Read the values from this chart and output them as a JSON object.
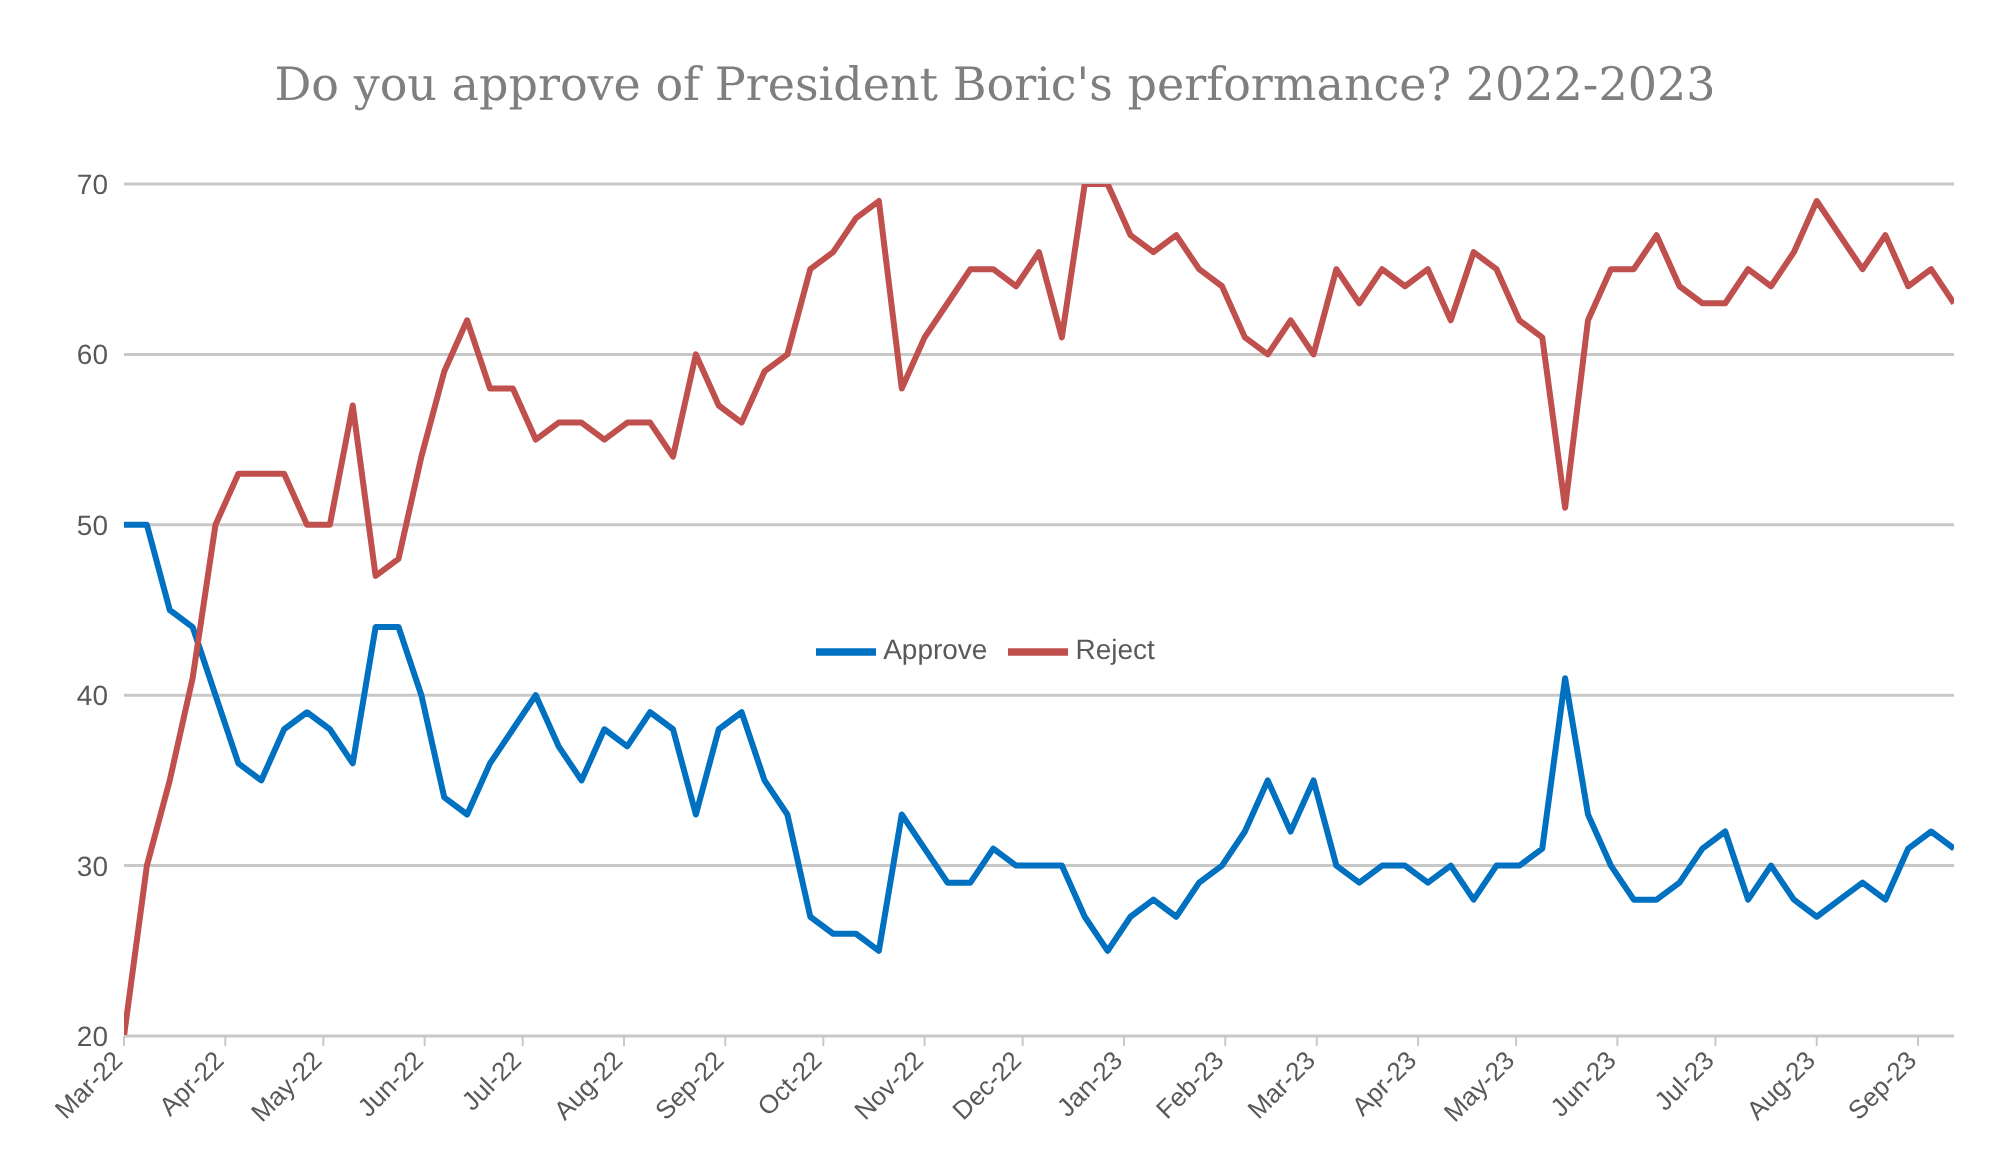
{
  "chart_data": {
    "type": "line",
    "title": "Do you approve of President Boric's performance? 2022-2023",
    "x": [
      "2022-03-01",
      "2022-03-08",
      "2022-03-15",
      "2022-03-22",
      "2022-03-29",
      "2022-04-05",
      "2022-04-12",
      "2022-04-19",
      "2022-04-26",
      "2022-05-03",
      "2022-05-10",
      "2022-05-17",
      "2022-05-24",
      "2022-05-31",
      "2022-06-07",
      "2022-06-14",
      "2022-06-21",
      "2022-06-28",
      "2022-07-05",
      "2022-07-12",
      "2022-07-19",
      "2022-07-26",
      "2022-08-02",
      "2022-08-09",
      "2022-08-16",
      "2022-08-23",
      "2022-08-30",
      "2022-09-06",
      "2022-09-13",
      "2022-09-20",
      "2022-09-27",
      "2022-10-04",
      "2022-10-11",
      "2022-10-18",
      "2022-10-25",
      "2022-11-01",
      "2022-11-08",
      "2022-11-15",
      "2022-11-22",
      "2022-11-29",
      "2022-12-06",
      "2022-12-13",
      "2022-12-20",
      "2022-12-27",
      "2023-01-03",
      "2023-01-10",
      "2023-01-17",
      "2023-01-24",
      "2023-01-31",
      "2023-02-07",
      "2023-02-14",
      "2023-02-21",
      "2023-02-28",
      "2023-03-07",
      "2023-03-14",
      "2023-03-21",
      "2023-03-28",
      "2023-04-04",
      "2023-04-11",
      "2023-04-18",
      "2023-04-25",
      "2023-05-02",
      "2023-05-09",
      "2023-05-16",
      "2023-05-23",
      "2023-05-30",
      "2023-06-06",
      "2023-06-13",
      "2023-06-20",
      "2023-06-27",
      "2023-07-04",
      "2023-07-11",
      "2023-07-18",
      "2023-07-25",
      "2023-08-01",
      "2023-08-08",
      "2023-08-15",
      "2023-08-22",
      "2023-08-29",
      "2023-09-05",
      "2023-09-12"
    ],
    "series": [
      {
        "name": "Approve",
        "color": "#0070c0",
        "values": [
          50,
          50,
          45,
          44,
          40,
          36,
          35,
          38,
          39,
          38,
          36,
          44,
          44,
          40,
          34,
          33,
          36,
          38,
          40,
          37,
          35,
          38,
          37,
          39,
          38,
          33,
          38,
          39,
          35,
          33,
          27,
          26,
          26,
          25,
          33,
          31,
          29,
          29,
          31,
          30,
          30,
          30,
          27,
          25,
          27,
          28,
          27,
          29,
          30,
          32,
          35,
          32,
          35,
          30,
          29,
          30,
          30,
          29,
          30,
          28,
          30,
          30,
          31,
          41,
          33,
          30,
          28,
          28,
          29,
          31,
          32,
          28,
          30,
          28,
          27,
          28,
          29,
          28,
          31,
          32,
          31
        ]
      },
      {
        "name": "Reject",
        "color": "#c0504d",
        "values": [
          20,
          30,
          35,
          41,
          50,
          53,
          53,
          53,
          50,
          50,
          57,
          47,
          48,
          54,
          59,
          62,
          58,
          58,
          55,
          56,
          56,
          55,
          56,
          56,
          54,
          60,
          57,
          56,
          59,
          60,
          65,
          66,
          68,
          69,
          58,
          61,
          63,
          65,
          65,
          64,
          66,
          61,
          70,
          70,
          67,
          66,
          67,
          65,
          64,
          61,
          60,
          62,
          60,
          65,
          63,
          65,
          64,
          65,
          62,
          66,
          65,
          62,
          61,
          51,
          62,
          65,
          65,
          67,
          64,
          63,
          63,
          65,
          64,
          66,
          69,
          67,
          65,
          67,
          64,
          65,
          63
        ]
      }
    ],
    "xlim": [
      "2022-03-01",
      "2023-09-12"
    ],
    "xticks": [
      {
        "value": "2022-03-01",
        "label": "Mar-22"
      },
      {
        "value": "2022-04-01",
        "label": "Apr-22"
      },
      {
        "value": "2022-05-01",
        "label": "May-22"
      },
      {
        "value": "2022-06-01",
        "label": "Jun-22"
      },
      {
        "value": "2022-07-01",
        "label": "Jul-22"
      },
      {
        "value": "2022-08-01",
        "label": "Aug-22"
      },
      {
        "value": "2022-09-01",
        "label": "Sep-22"
      },
      {
        "value": "2022-10-01",
        "label": "Oct-22"
      },
      {
        "value": "2022-11-01",
        "label": "Nov-22"
      },
      {
        "value": "2022-12-01",
        "label": "Dec-22"
      },
      {
        "value": "2023-01-01",
        "label": "Jan-23"
      },
      {
        "value": "2023-02-01",
        "label": "Feb-23"
      },
      {
        "value": "2023-03-01",
        "label": "Mar-23"
      },
      {
        "value": "2023-04-01",
        "label": "Apr-23"
      },
      {
        "value": "2023-05-01",
        "label": "May-23"
      },
      {
        "value": "2023-06-01",
        "label": "Jun-23"
      },
      {
        "value": "2023-07-01",
        "label": "Jul-23"
      },
      {
        "value": "2023-08-01",
        "label": "Aug-23"
      },
      {
        "value": "2023-09-01",
        "label": "Sep-23"
      }
    ],
    "ylim": [
      20,
      70
    ],
    "yticks": [
      20,
      30,
      40,
      50,
      60,
      70
    ],
    "grid": "y",
    "legend": "center"
  }
}
